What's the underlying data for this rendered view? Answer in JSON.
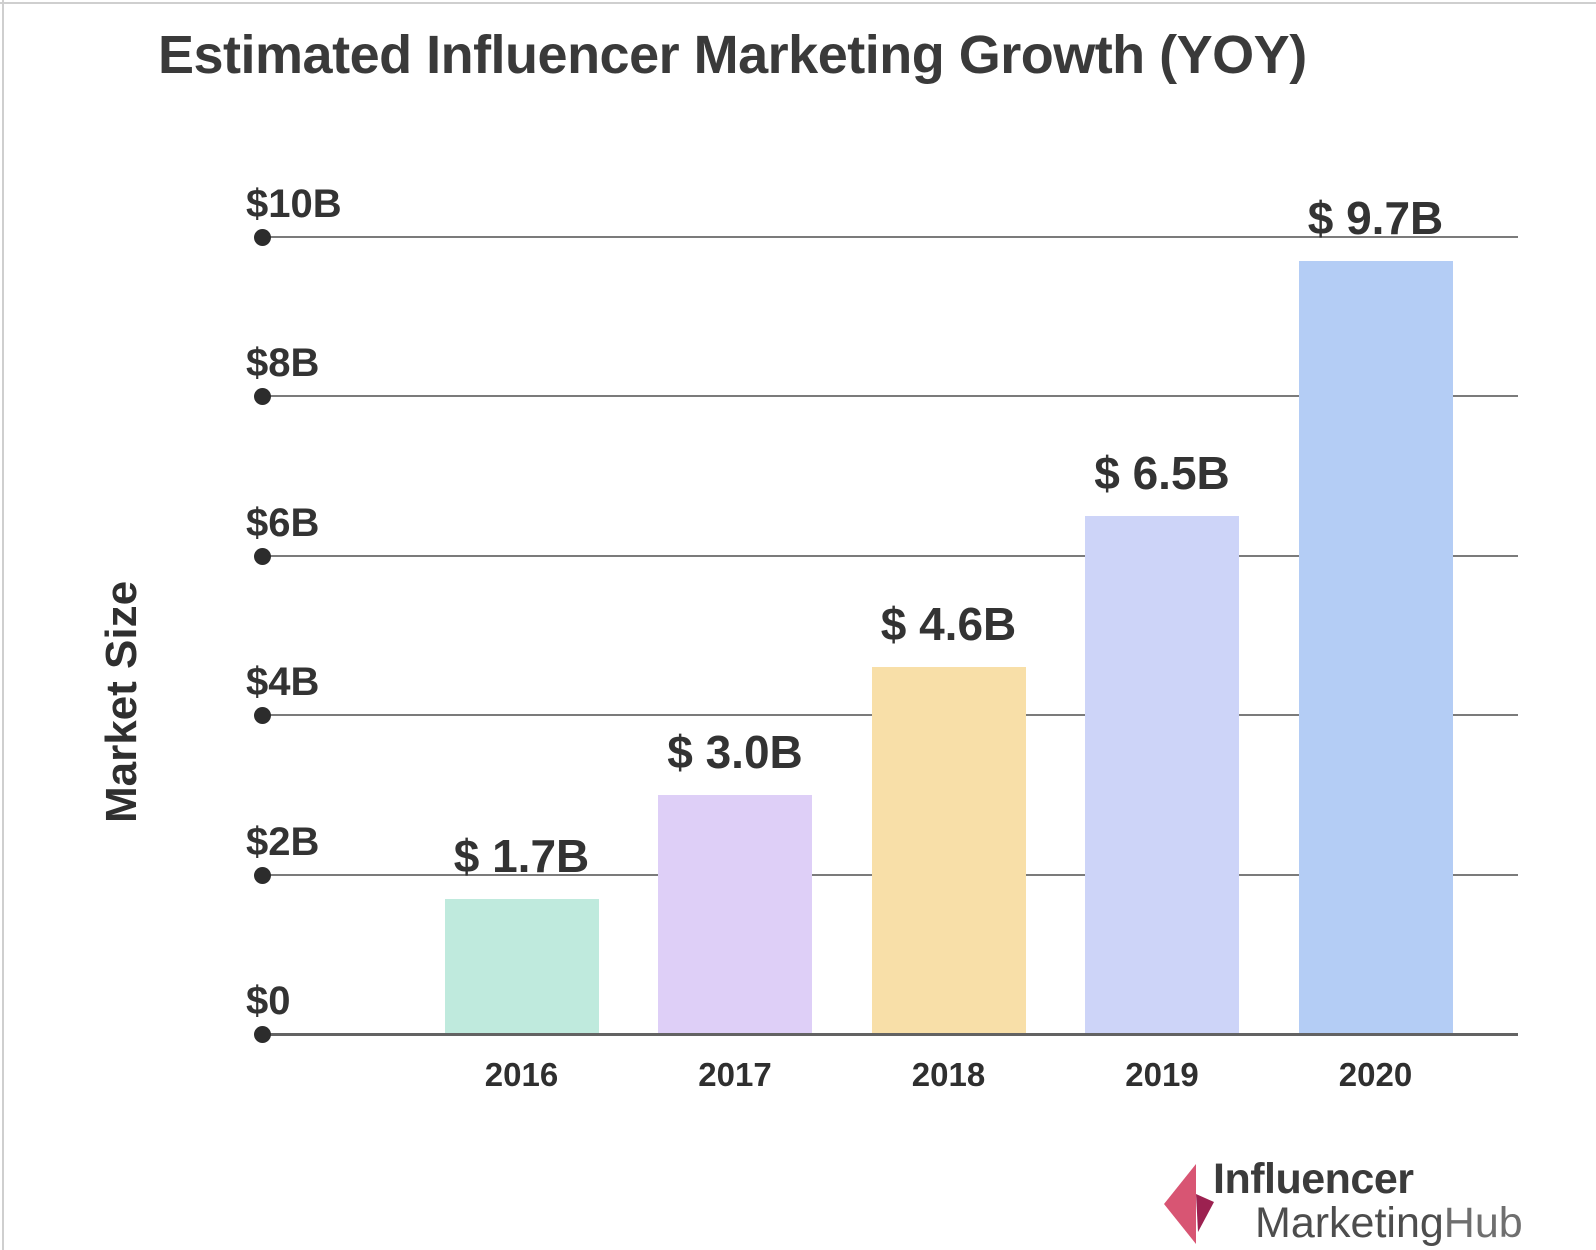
{
  "chart_data": {
    "type": "bar",
    "title": "Estimated Influencer Marketing Growth (YOY)",
    "xlabel": "",
    "ylabel": "Market Size",
    "categories": [
      "2016",
      "2017",
      "2018",
      "2019",
      "2020"
    ],
    "values": [
      1.7,
      3.0,
      4.6,
      6.5,
      9.7
    ],
    "value_labels": [
      "$ 1.7B",
      "$ 3.0B",
      "$ 4.6B",
      "$ 6.5B",
      "$ 9.7B"
    ],
    "bar_colors": [
      "#bfeadd",
      "#decff7",
      "#f8dfa8",
      "#cdd4f8",
      "#b4cdf5"
    ],
    "ylim": [
      0,
      10
    ],
    "yticks": [
      {
        "label": "$10B",
        "value": 10
      },
      {
        "label": "$8B",
        "value": 8
      },
      {
        "label": "$6B",
        "value": 6
      },
      {
        "label": "$4B",
        "value": 4
      },
      {
        "label": "$2B",
        "value": 2
      },
      {
        "label": "$0",
        "value": 0
      }
    ],
    "grid": true,
    "legend": false
  },
  "branding": {
    "line1": "Influencer",
    "line2_marketing": "Marketing",
    "line2_hub": "Hub",
    "arrow_pink": "#d85573",
    "arrow_dark": "#9c2150"
  }
}
